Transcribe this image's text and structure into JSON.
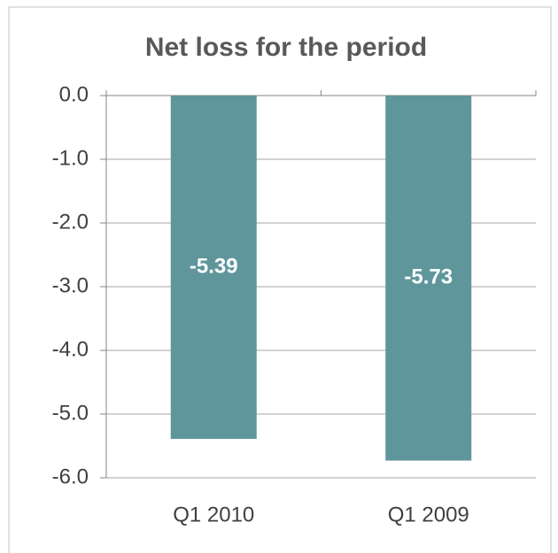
{
  "chart_data": {
    "type": "bar",
    "title": "Net loss for the period",
    "categories": [
      "Q1 2010",
      "Q1 2009"
    ],
    "values": [
      -5.39,
      -5.73
    ],
    "color": "#5f969b",
    "ylim": [
      -6,
      0
    ],
    "yticks": [
      {
        "value": 0,
        "label": "0.0"
      },
      {
        "value": -1,
        "label": "-1.0"
      },
      {
        "value": -2,
        "label": "-2.0"
      },
      {
        "value": -3,
        "label": "-3.0"
      },
      {
        "value": -4,
        "label": "-4.0"
      },
      {
        "value": -5,
        "label": "-5.0"
      },
      {
        "value": -6,
        "label": "-6.0"
      }
    ],
    "grid": true
  }
}
